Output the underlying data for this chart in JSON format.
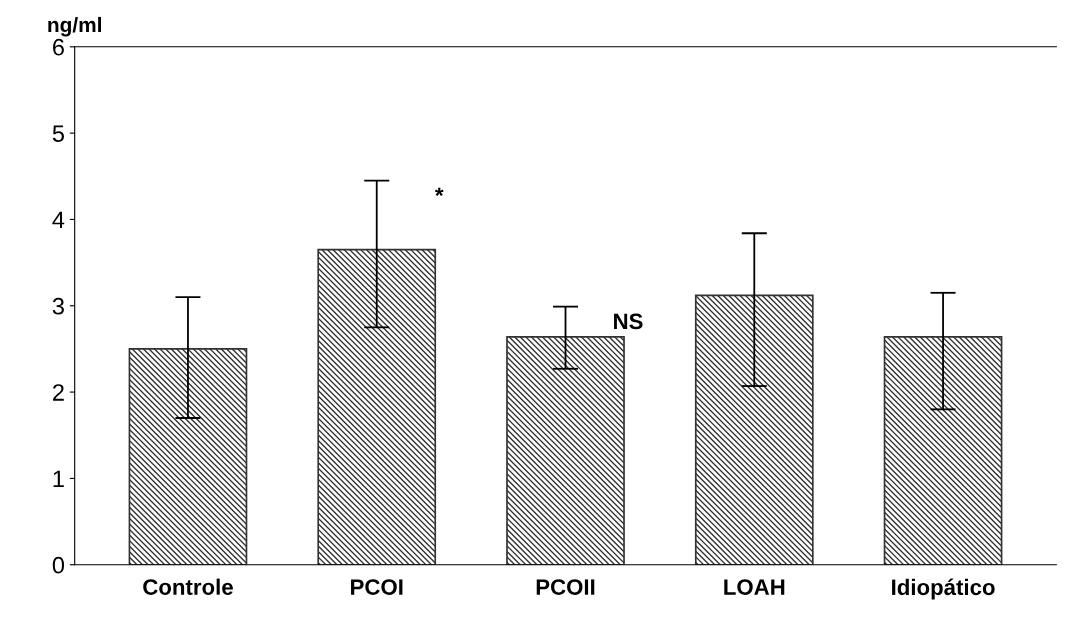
{
  "chart_data": {
    "type": "bar",
    "ylabel": "ng/ml",
    "categories": [
      "Controle",
      "PCOI",
      "PCOII",
      "LOAH",
      "Idiopático"
    ],
    "values": [
      2.5,
      3.65,
      2.64,
      3.12,
      2.64
    ],
    "errors": [
      [
        1.7,
        3.1
      ],
      [
        2.75,
        4.45
      ],
      [
        2.27,
        2.99
      ],
      [
        2.07,
        3.84
      ],
      [
        1.8,
        3.15
      ]
    ],
    "color": "#333333",
    "ylim": [
      0,
      6
    ],
    "yticks": [
      0,
      1,
      2,
      3,
      4,
      5,
      6
    ],
    "grid": false,
    "legend": false,
    "annotations": [
      {
        "text": "*",
        "x": "PCOI",
        "y": 4.45
      },
      {
        "text": "NS",
        "x": "PCOII",
        "y": 2.99
      }
    ]
  }
}
